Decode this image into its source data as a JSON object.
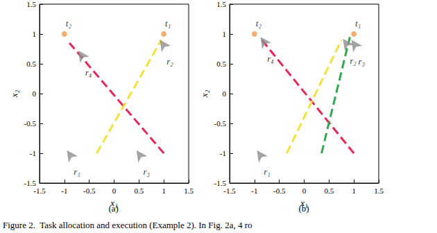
{
  "chart_data": [
    {
      "type": "scatter",
      "title": "(a)",
      "xlabel": "x₁",
      "ylabel": "x₂",
      "xlim": [
        -1.5,
        1.5
      ],
      "ylim": [
        -1.5,
        1.5
      ],
      "xticks": [
        -1.5,
        -1,
        -0.5,
        0,
        0.5,
        1,
        1.5
      ],
      "yticks": [
        -1.5,
        -1,
        -0.5,
        0,
        0.5,
        1,
        1.5
      ],
      "grid": false,
      "series": [
        {
          "type": "line",
          "line_style": "dashed",
          "color": "#e8265a",
          "x": [
            1,
            -0.9
          ],
          "values": [
            -1,
            0.85
          ]
        },
        {
          "type": "line",
          "line_style": "dashed",
          "color": "#f5e03a",
          "x": [
            -0.35,
            0.95
          ],
          "values": [
            -1,
            0.9
          ]
        },
        {
          "type": "scatter",
          "marker": "arrow",
          "color": "#8c8c8c",
          "x": [
            -0.95,
            0.92,
            0.45,
            -0.72
          ],
          "values": [
            -0.95,
            0.9,
            -0.95,
            0.72
          ],
          "point_labels": [
            "r₁",
            "r₂",
            "r₃",
            "r₄"
          ]
        },
        {
          "type": "scatter",
          "marker": "circle",
          "color": "#f39c4a",
          "x": [
            1,
            -1
          ],
          "values": [
            1,
            1
          ],
          "point_labels": [
            "t₁",
            "t₂"
          ]
        }
      ]
    },
    {
      "type": "scatter",
      "title": "(b)",
      "xlabel": "x₁",
      "ylabel": "x₂",
      "xlim": [
        -1.5,
        1.5
      ],
      "ylim": [
        -1.5,
        1.5
      ],
      "xticks": [
        -1.5,
        -1,
        -0.5,
        0,
        0.5,
        1,
        1.5
      ],
      "yticks": [
        -1.5,
        -1,
        -0.5,
        0,
        0.5,
        1,
        1.5
      ],
      "grid": false,
      "series": [
        {
          "type": "line",
          "line_style": "dashed",
          "color": "#e8265a",
          "x": [
            1,
            -0.9
          ],
          "values": [
            -1,
            0.95
          ]
        },
        {
          "type": "line",
          "line_style": "dashed",
          "color": "#f5e03a",
          "x": [
            -0.35,
            0.75
          ],
          "values": [
            -1,
            0.9
          ]
        },
        {
          "type": "line",
          "line_style": "dashed",
          "color": "#2fa84f",
          "x": [
            0.35,
            0.92
          ],
          "values": [
            -1,
            0.95
          ]
        },
        {
          "type": "scatter",
          "marker": "arrow",
          "color": "#8c8c8c",
          "x": [
            -0.95,
            0.78,
            0.95,
            -0.88
          ],
          "values": [
            -0.95,
            0.92,
            0.9,
            0.95
          ],
          "point_labels": [
            "r₁",
            "r₂",
            "r₃",
            "r₄"
          ]
        },
        {
          "type": "scatter",
          "marker": "circle",
          "color": "#f39c4a",
          "x": [
            1,
            -1
          ],
          "values": [
            1,
            1
          ],
          "point_labels": [
            "t₁",
            "t₂"
          ]
        }
      ]
    }
  ],
  "caption": "Figure 2.  Task allocation and execution (Example 2). In Fig. 2a, 4 ro"
}
